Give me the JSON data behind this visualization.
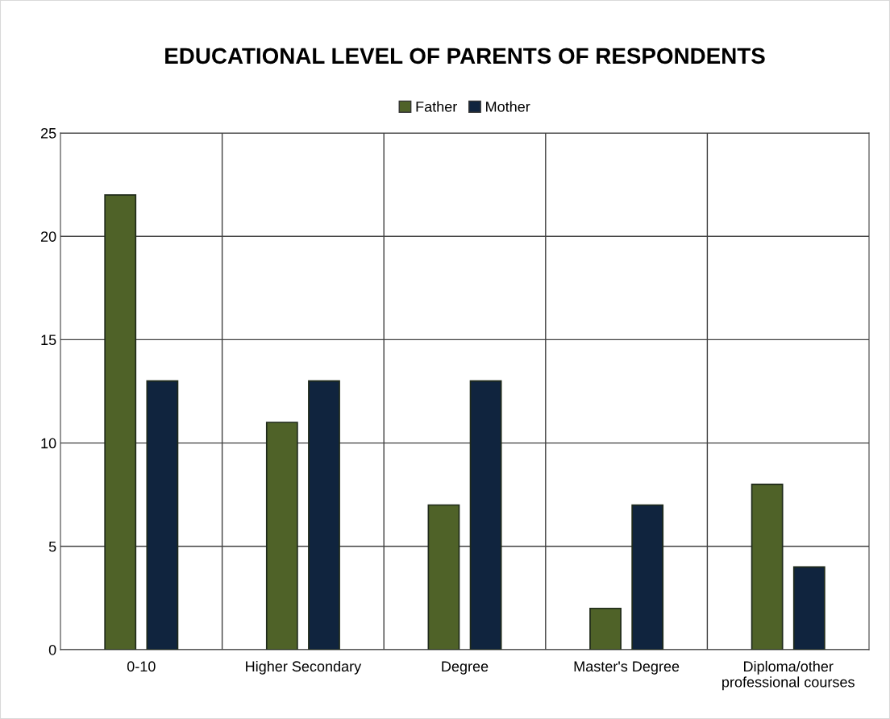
{
  "chart_data": {
    "type": "bar",
    "title": "EDUCATIONAL LEVEL OF PARENTS OF RESPONDENTS",
    "categories": [
      "0-10",
      "Higher Secondary",
      "Degree",
      "Master's Degree",
      "Diploma/other\nprofessional courses"
    ],
    "series": [
      {
        "name": "Father",
        "color": "#4f6228",
        "values": [
          22,
          11,
          7,
          2,
          8
        ]
      },
      {
        "name": "Mother",
        "color": "#10243e",
        "values": [
          13,
          13,
          13,
          7,
          4
        ]
      }
    ],
    "ylim": [
      0,
      25
    ],
    "yticks": [
      0,
      5,
      10,
      15,
      20,
      25
    ],
    "grid": true,
    "legend": "top"
  }
}
